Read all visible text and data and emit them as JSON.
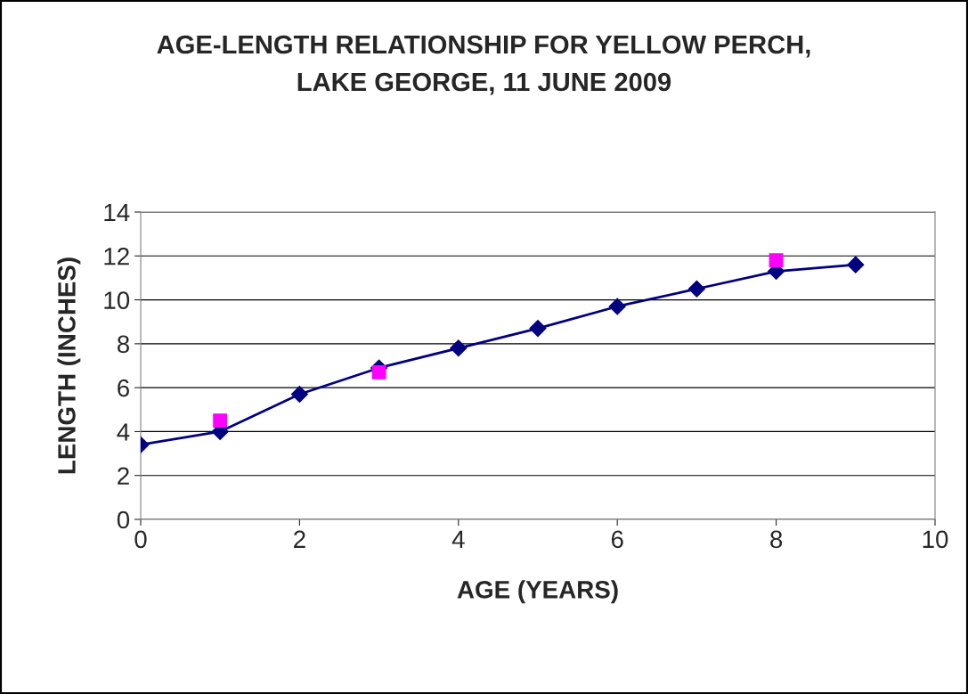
{
  "chart_data": {
    "type": "line",
    "title": "AGE-LENGTH RELATIONSHIP FOR YELLOW PERCH,\nLAKE GEORGE, 11 JUNE 2009",
    "xlabel": "AGE (YEARS)",
    "ylabel": "LENGTH (INCHES)",
    "series": [
      {
        "color": "#000080",
        "marker": "diamond",
        "x": [
          0,
          1,
          2,
          3,
          4,
          5,
          6,
          7,
          8,
          9
        ],
        "values": [
          3.4,
          4.0,
          5.7,
          6.9,
          7.8,
          8.7,
          9.7,
          10.5,
          11.3,
          11.6
        ]
      },
      {
        "type": "scatter",
        "color": "#ff00ff",
        "marker": "square",
        "x": [
          1,
          3,
          8
        ],
        "values": [
          4.5,
          6.7,
          11.8
        ]
      }
    ],
    "xlim": [
      0,
      10
    ],
    "xticks": [
      0,
      2,
      4,
      6,
      8,
      10
    ],
    "ylim": [
      0,
      14
    ],
    "yticks": [
      0,
      2,
      4,
      6,
      8,
      10,
      12,
      14
    ],
    "grid": "y",
    "legend": false
  }
}
